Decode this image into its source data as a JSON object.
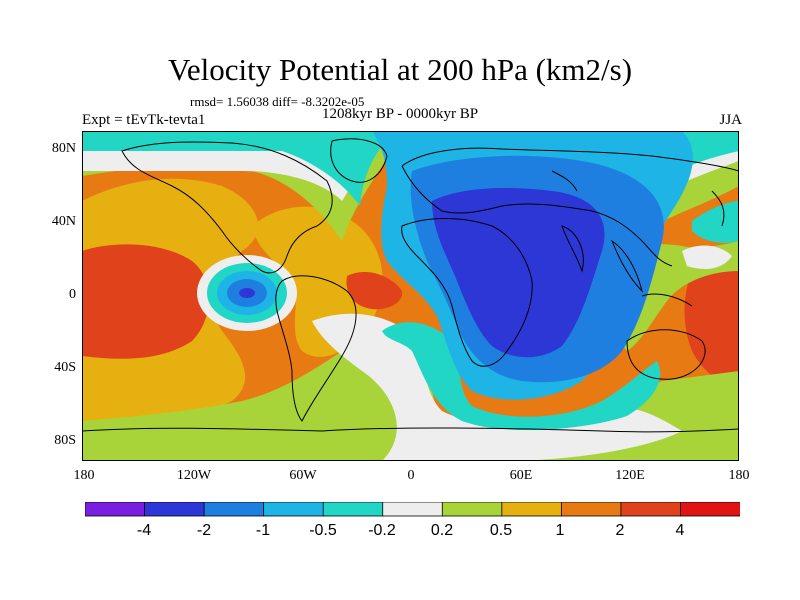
{
  "title": "Velocity Potential at 200 hPa (km2/s)",
  "stats": "rmsd= 1.56038  diff= -8.3202e-05",
  "period": "1208kyr BP - 0000kyr BP",
  "experiment": "Expt = tEvTk-tevta1",
  "season": "JJA",
  "map": {
    "lat_labels": [
      "80N",
      "40N",
      "0",
      "40S",
      "80S"
    ],
    "lon_labels": [
      "180",
      "120W",
      "60W",
      "0",
      "60E",
      "120E",
      "180"
    ],
    "projection": "cylindrical equidistant",
    "domain": {
      "lon": [
        -180,
        180
      ],
      "lat": [
        -90,
        90
      ]
    }
  },
  "colorbar": {
    "labels": [
      "-4",
      "-2",
      "-1",
      "-0.5",
      "-0.2",
      "0.2",
      "0.5",
      "1",
      "2",
      "4"
    ],
    "colors": [
      "#7a1fe0",
      "#2c37d6",
      "#1f7fe0",
      "#1fb4e6",
      "#21d6c4",
      "#eeeeee",
      "#a8d43a",
      "#e6b010",
      "#e87a14",
      "#e0421c",
      "#e01414"
    ]
  }
}
